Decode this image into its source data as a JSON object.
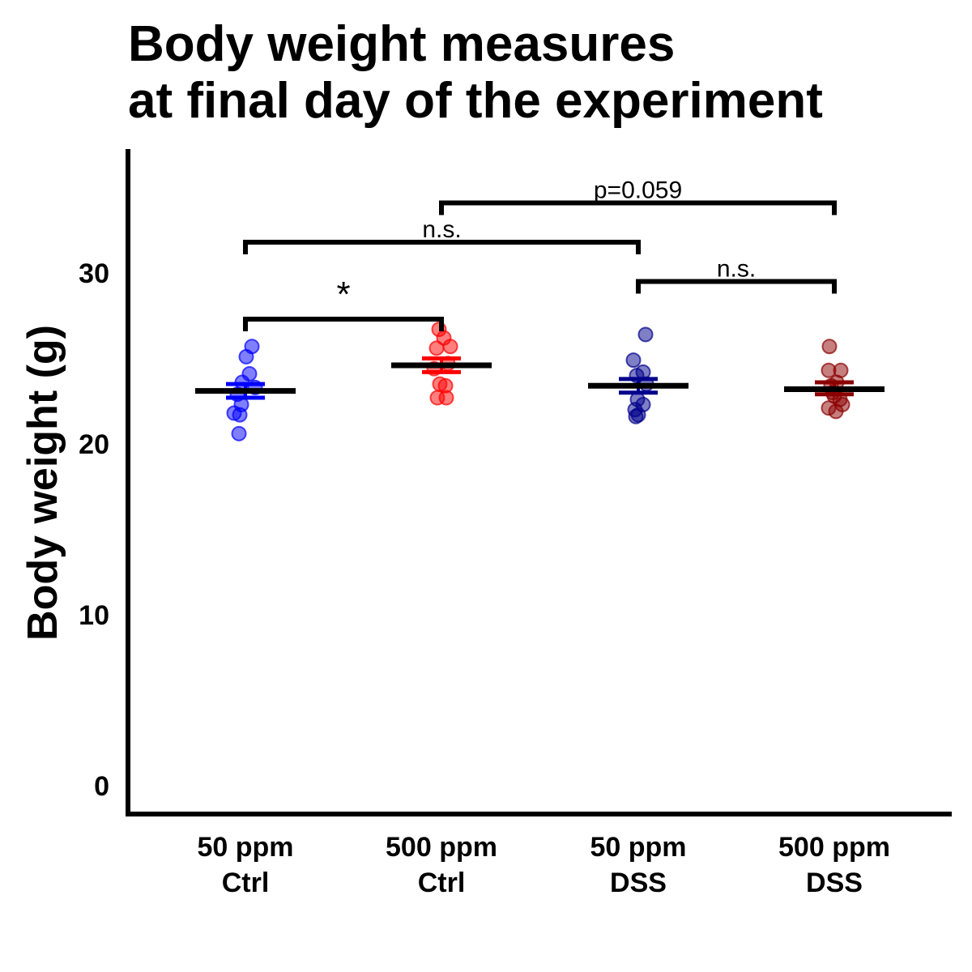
{
  "chart_data": {
    "type": "scatter",
    "title_lines": [
      "Body weight measures",
      "at final day of the experiment"
    ],
    "xlabel": "",
    "ylabel": "Body weight (g)",
    "ylim": [
      0,
      36
    ],
    "yticks": [
      0,
      10,
      20,
      30
    ],
    "grid": false,
    "groups": [
      {
        "label_lines": [
          "50 ppm",
          "Ctrl"
        ],
        "color": "#0000ff",
        "mean": 23.1,
        "sem_low": 22.7,
        "sem_high": 23.5,
        "points": [
          25.7,
          25.1,
          24.1,
          23.6,
          23.3,
          22.9,
          22.3,
          21.8,
          21.7,
          20.6
        ]
      },
      {
        "label_lines": [
          "500 ppm",
          "Ctrl"
        ],
        "color": "#ff0000",
        "mean": 24.6,
        "sem_low": 24.2,
        "sem_high": 25.0,
        "points": [
          26.7,
          26.2,
          25.7,
          25.6,
          24.7,
          24.4,
          23.5,
          23.4,
          22.7,
          22.7
        ]
      },
      {
        "label_lines": [
          "50 ppm",
          "DSS"
        ],
        "color": "#00008b",
        "mean": 23.4,
        "sem_low": 23.0,
        "sem_high": 23.8,
        "points": [
          26.4,
          24.9,
          24.2,
          24.0,
          23.5,
          22.6,
          22.3,
          22.0,
          21.7,
          21.6
        ]
      },
      {
        "label_lines": [
          "500 ppm",
          "DSS"
        ],
        "color": "#8b0000",
        "mean": 23.2,
        "sem_low": 22.9,
        "sem_high": 23.6,
        "points": [
          25.7,
          24.3,
          24.3,
          23.6,
          23.4,
          23.0,
          22.8,
          22.6,
          22.3,
          22.1,
          21.9
        ]
      }
    ],
    "comparisons": [
      {
        "from": 0,
        "to": 1,
        "y": 27.3,
        "label": "*"
      },
      {
        "from": 0,
        "to": 2,
        "y": 31.8,
        "label": "n.s."
      },
      {
        "from": 2,
        "to": 3,
        "y": 29.5,
        "label": "n.s."
      },
      {
        "from": 1,
        "to": 3,
        "y": 34.1,
        "label": "p=0.059"
      }
    ]
  }
}
